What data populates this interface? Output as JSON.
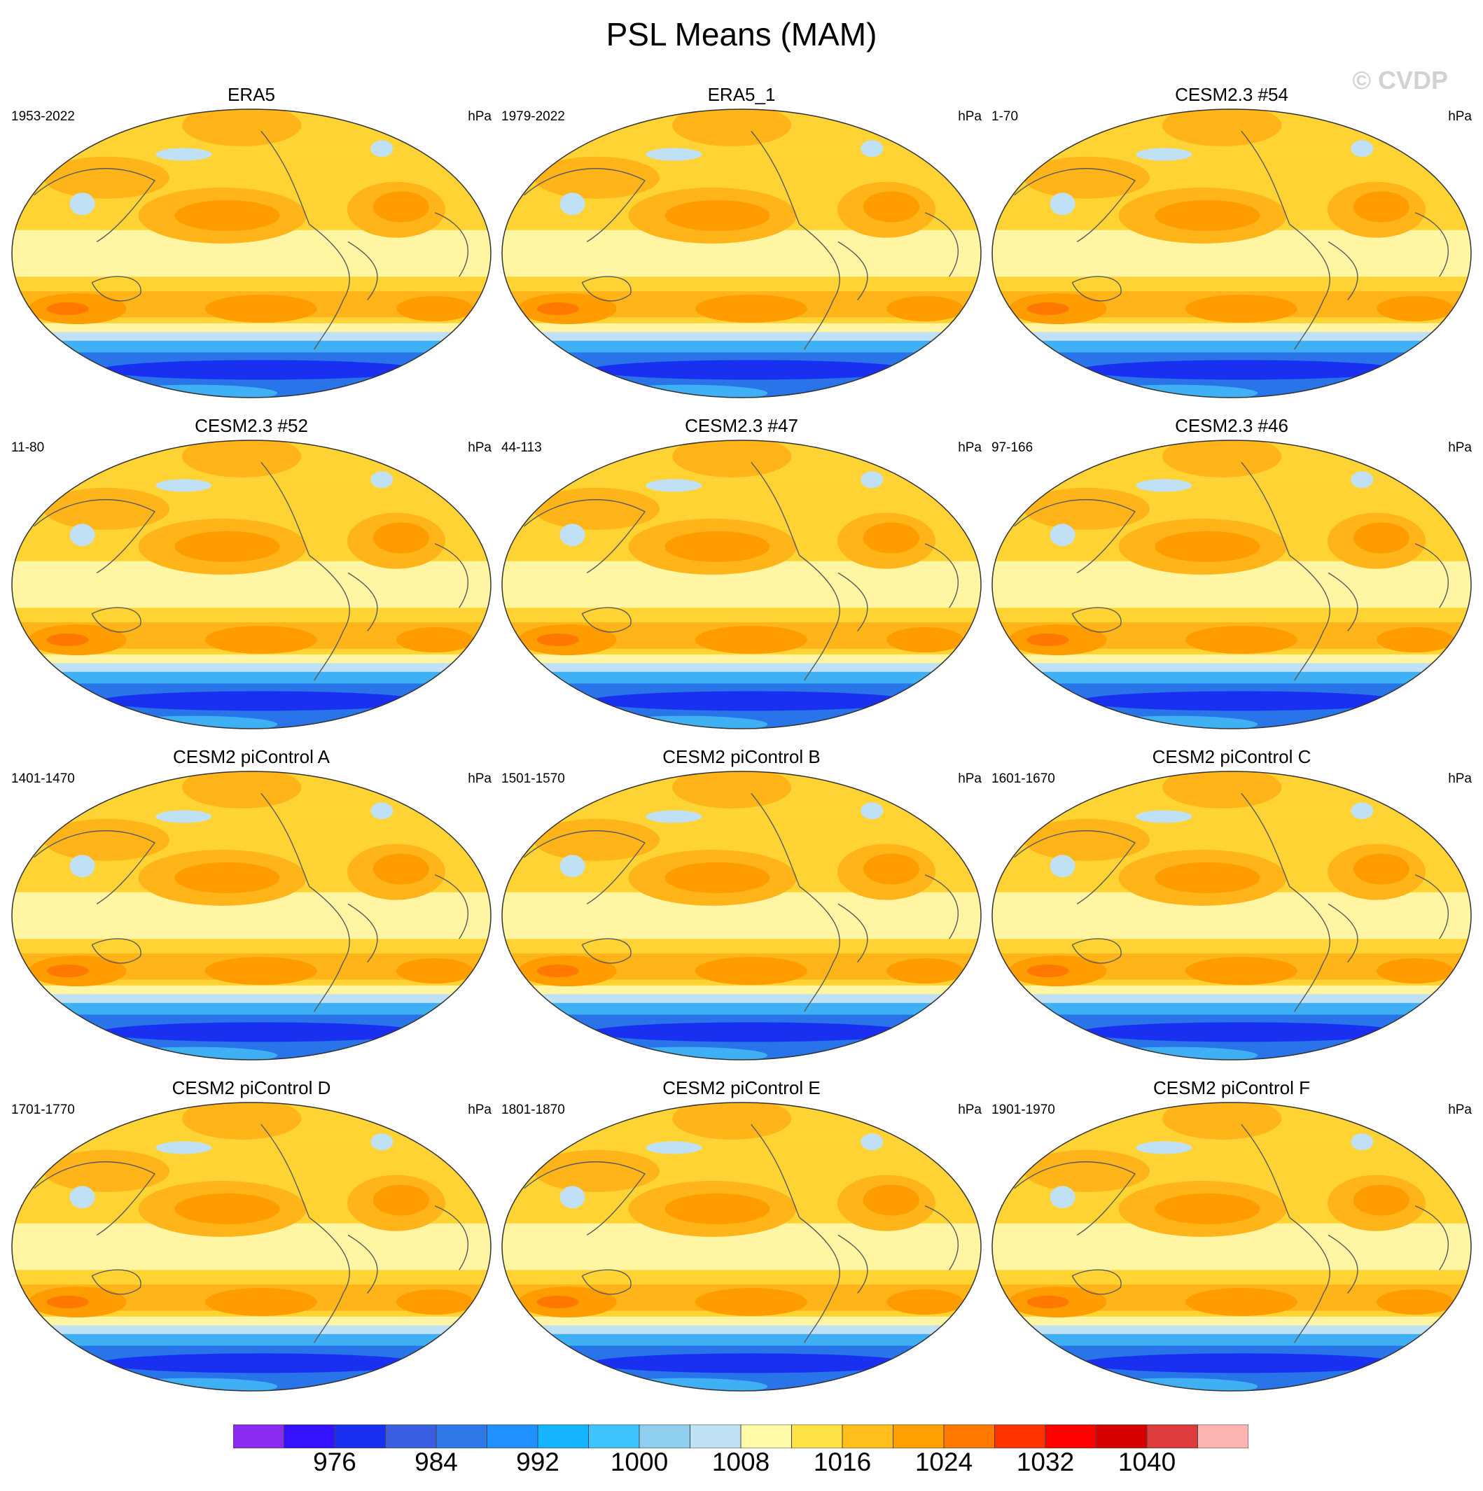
{
  "title": "PSL Means (MAM)",
  "watermark": "© CVDP",
  "panels": [
    {
      "title": "ERA5",
      "range": "1953-2022",
      "units": "hPa"
    },
    {
      "title": "ERA5_1",
      "range": "1979-2022",
      "units": "hPa"
    },
    {
      "title": "CESM2.3 #54",
      "range": "1-70",
      "units": "hPa"
    },
    {
      "title": "CESM2.3 #52",
      "range": "11-80",
      "units": "hPa"
    },
    {
      "title": "CESM2.3 #47",
      "range": "44-113",
      "units": "hPa"
    },
    {
      "title": "CESM2.3 #46",
      "range": "97-166",
      "units": "hPa"
    },
    {
      "title": "CESM2 piControl A",
      "range": "1401-1470",
      "units": "hPa"
    },
    {
      "title": "CESM2 piControl B",
      "range": "1501-1570",
      "units": "hPa"
    },
    {
      "title": "CESM2 piControl C",
      "range": "1601-1670",
      "units": "hPa"
    },
    {
      "title": "CESM2 piControl D",
      "range": "1701-1770",
      "units": "hPa"
    },
    {
      "title": "CESM2 piControl E",
      "range": "1801-1870",
      "units": "hPa"
    },
    {
      "title": "CESM2 piControl F",
      "range": "1901-1970",
      "units": "hPa"
    }
  ],
  "colorbar": {
    "labels": [
      "976",
      "984",
      "992",
      "1000",
      "1008",
      "1016",
      "1024",
      "1032",
      "1040"
    ],
    "colors": [
      "#8c2cf0",
      "#3312ff",
      "#1a30f0",
      "#3a5ee0",
      "#2f78e8",
      "#1e90ff",
      "#16b4ff",
      "#40c4ff",
      "#8ecff0",
      "#bfe2f5",
      "#fffaa8",
      "#ffe246",
      "#ffbe19",
      "#ffa000",
      "#ff7800",
      "#ff3200",
      "#ff0000",
      "#d70000",
      "#dc3c3c",
      "#ffb4b4"
    ]
  },
  "map_palette": {
    "ocean_light": "#fff5a3",
    "mid": "#ffd333",
    "high": "#ffb419",
    "higher": "#ff9c00",
    "peak": "#ff7800",
    "low_light": "#bfe0f5",
    "low_mid": "#40b0f5",
    "low": "#2874e8",
    "low_deep": "#1a30f0",
    "coast": "#5a5a5a"
  }
}
